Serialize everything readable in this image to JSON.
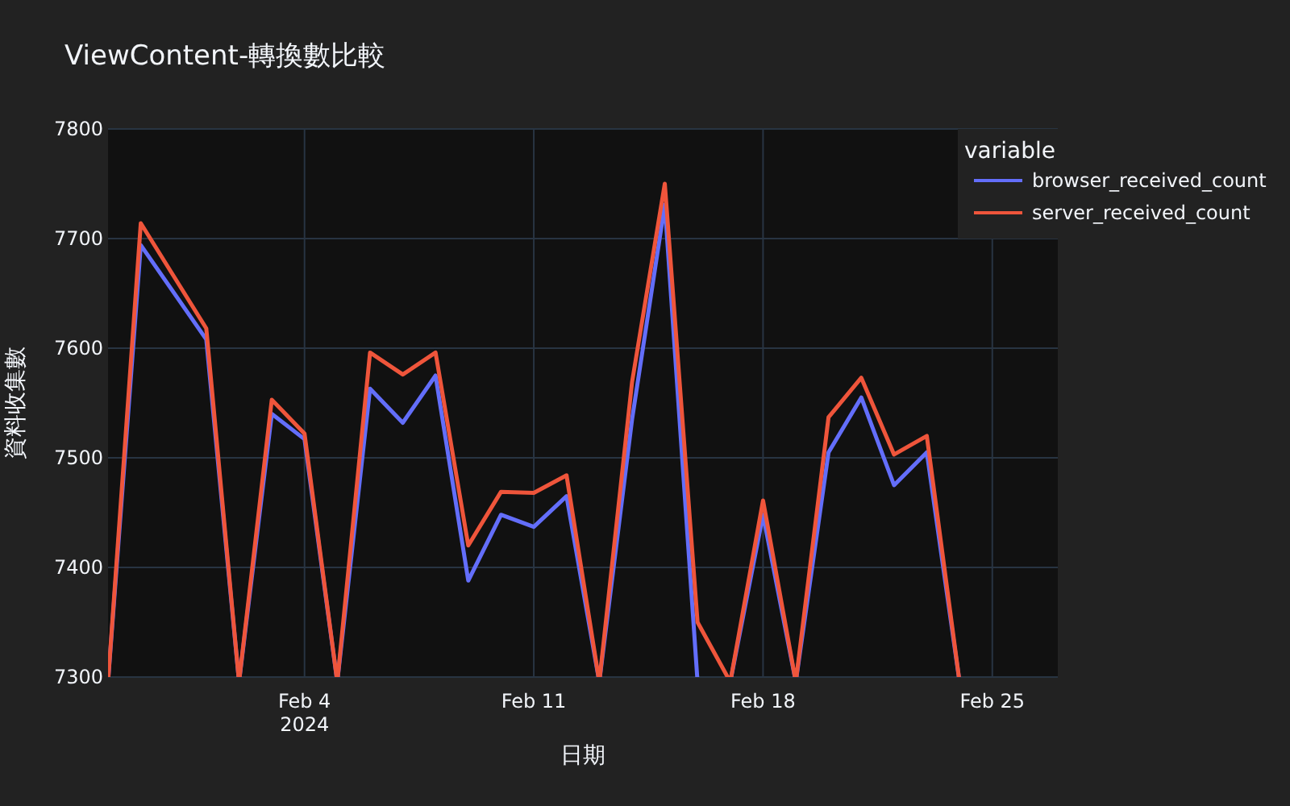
{
  "chart_data": {
    "type": "line",
    "title": "ViewContent-轉換數比較",
    "xlabel": "日期",
    "ylabel": "資料收集數",
    "legend_title": "variable",
    "x": [
      "2024-01-30",
      "2024-01-31",
      "2024-02-01",
      "2024-02-03",
      "2024-02-04",
      "2024-02-06",
      "2024-02-07",
      "2024-02-08",
      "2024-02-09",
      "2024-02-10",
      "2024-02-11",
      "2024-02-12",
      "2024-02-14",
      "2024-02-15",
      "2024-02-16",
      "2024-02-18",
      "2024-02-20",
      "2024-02-21",
      "2024-02-22",
      "2024-02-23"
    ],
    "series": [
      {
        "name": "browser_received_count",
        "color": "#636efa",
        "values": [
          7694,
          7651,
          7608,
          7540,
          7517,
          7563,
          7532,
          7575,
          7388,
          7448,
          7437,
          7465,
          7535,
          7731,
          null,
          7448,
          7505,
          7555,
          7475,
          7505
        ]
      },
      {
        "name": "server_received_count",
        "color": "#ef553b",
        "values": [
          7714,
          7666,
          7618,
          7553,
          7522,
          7596,
          7576,
          7596,
          7420,
          7469,
          7468,
          7484,
          7569,
          7750,
          7350,
          7461,
          7537,
          7573,
          7503,
          7520
        ]
      }
    ],
    "xlim": [
      "2024-01-29",
      "2024-02-27"
    ],
    "xticks": [
      {
        "value": "2024-02-04",
        "label": "Feb 4\n2024"
      },
      {
        "value": "2024-02-11",
        "label": "Feb 11"
      },
      {
        "value": "2024-02-18",
        "label": "Feb 18"
      },
      {
        "value": "2024-02-25",
        "label": "Feb 25"
      }
    ],
    "ylim": [
      7300,
      7800
    ],
    "yticks": [
      7300,
      7400,
      7500,
      7600,
      7700,
      7800
    ],
    "grid": true,
    "legend": "top right",
    "line_style": "solid"
  }
}
